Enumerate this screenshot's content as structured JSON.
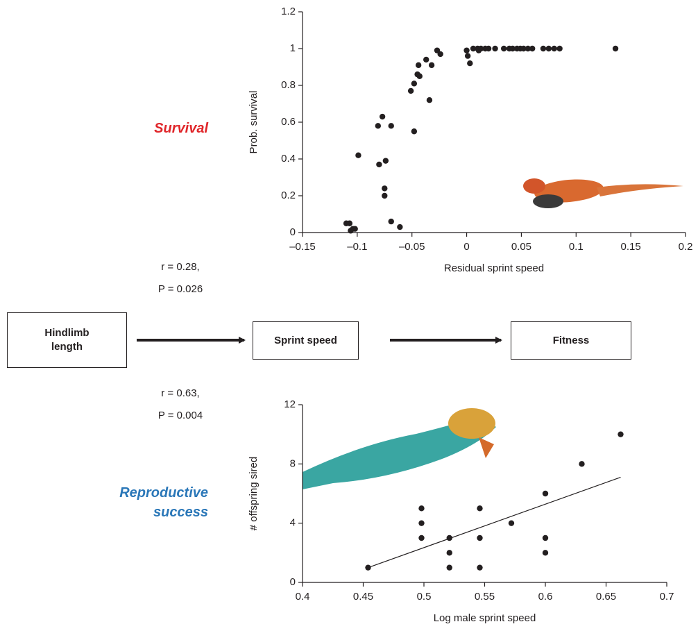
{
  "chart_data": [
    {
      "type": "scatter",
      "xlabel": "Residual sprint speed",
      "ylabel": "Prob. survival",
      "color": "#231f20",
      "xlim": [
        -0.15,
        0.2
      ],
      "xticks": [
        {
          "value": -0.15,
          "label": "–0.15"
        },
        {
          "value": -0.1,
          "label": "–0.1"
        },
        {
          "value": -0.05,
          "label": "–0.05"
        },
        0,
        0.05,
        0.1,
        0.15,
        0.2
      ],
      "ylim": [
        0,
        1.2
      ],
      "yticks": [
        0,
        0.2,
        0.4,
        0.6,
        0.8,
        1,
        1.2
      ],
      "x": [
        -0.106,
        -0.102,
        -0.11,
        -0.107,
        -0.104,
        -0.099,
        -0.069,
        -0.08,
        -0.081,
        -0.077,
        -0.074,
        -0.075,
        -0.075,
        -0.069,
        -0.061,
        -0.051,
        -0.048,
        -0.048,
        -0.045,
        -0.043,
        -0.044,
        -0.037,
        -0.034,
        -0.032,
        -0.027,
        -0.024,
        0.0,
        0.001,
        0.003,
        0.006,
        0.01,
        0.011,
        0.013,
        0.017,
        0.02,
        0.026,
        0.034,
        0.039,
        0.042,
        0.046,
        0.049,
        0.052,
        0.056,
        0.06,
        0.07,
        0.075,
        0.08,
        0.085,
        0.136
      ],
      "values": [
        0.01,
        0.02,
        0.05,
        0.05,
        0.02,
        0.42,
        0.06,
        0.37,
        0.58,
        0.63,
        0.39,
        0.24,
        0.2,
        0.58,
        0.03,
        0.77,
        0.81,
        0.55,
        0.86,
        0.85,
        0.91,
        0.94,
        0.72,
        0.91,
        0.99,
        0.97,
        0.99,
        0.96,
        0.92,
        1,
        1,
        0.99,
        1,
        1,
        1,
        1,
        1,
        1,
        1,
        1,
        1,
        1,
        1,
        1,
        1,
        1,
        1,
        1,
        1
      ]
    },
    {
      "type": "scatter",
      "xlabel": "Log male sprint speed",
      "ylabel": "# offspring sired",
      "color": "#231f20",
      "xlim": [
        0.4,
        0.7
      ],
      "xticks": [
        0.4,
        0.45,
        0.5,
        0.55,
        0.6,
        0.65,
        0.7
      ],
      "ylim": [
        0,
        12
      ],
      "yticks": [
        0,
        4,
        8,
        12
      ],
      "x": [
        0.454,
        0.498,
        0.498,
        0.498,
        0.521,
        0.521,
        0.521,
        0.546,
        0.546,
        0.546,
        0.572,
        0.6,
        0.6,
        0.6,
        0.63,
        0.662
      ],
      "values": [
        1,
        5,
        4,
        3,
        3,
        2,
        1,
        5,
        3,
        1,
        4,
        6,
        3,
        2,
        8,
        10
      ],
      "fit_line": {
        "x": [
          0.454,
          0.662
        ],
        "values": [
          1.0,
          7.1
        ]
      }
    }
  ],
  "diagram": {
    "nodes": [
      "Hindlimb length",
      "Sprint speed",
      "Fitness"
    ],
    "survival_label": "Survival",
    "reproduction_label": "Reproductive success",
    "stats_top": [
      "r = 0.28,",
      "P = 0.026"
    ],
    "stats_bottom": [
      "r = 0.63,",
      "P = 0.004"
    ]
  }
}
